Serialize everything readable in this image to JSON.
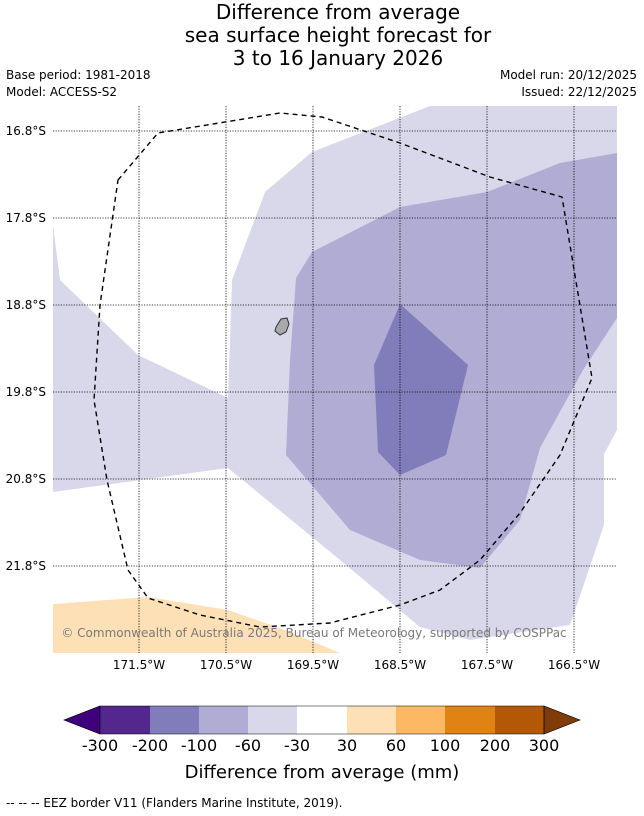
{
  "title": {
    "line1": "Difference from average",
    "line2": "sea surface height forecast for",
    "line3": "3 to 16 January 2026"
  },
  "meta": {
    "base_period": "Base period: 1981-2018",
    "model": "Model: ACCESS-S2",
    "model_run": "Model run: 20/12/2025",
    "issued": "Issued: 22/12/2025"
  },
  "map": {
    "lat_labels": [
      "16.8°S",
      "17.8°S",
      "18.8°S",
      "19.8°S",
      "20.8°S",
      "21.8°S"
    ],
    "lon_labels": [
      "171.5°W",
      "170.5°W",
      "169.5°W",
      "168.5°W",
      "167.5°W",
      "166.5°W"
    ],
    "copyright": "© Commonwealth of Australia 2025, Bureau of Meteorology, supported by COSPPac",
    "colors": {
      "land": "#a9a9a9",
      "eez_border": "#000000"
    }
  },
  "colorbar": {
    "title": "Difference from average (mm)",
    "ticks": [
      "-300",
      "-200",
      "-100",
      "-60",
      "-30",
      "30",
      "60",
      "100",
      "200",
      "300"
    ],
    "colors": [
      "#3f007d",
      "#54278f",
      "#807dba",
      "#b1acd3",
      "#d9d8ea",
      "#ffffff",
      "#fee0b6",
      "#fdb863",
      "#e08214",
      "#b35806",
      "#7f3b08"
    ]
  },
  "legend_note": "--  --  -- EEZ border V11 (Flanders Marine Institute, 2019)."
}
